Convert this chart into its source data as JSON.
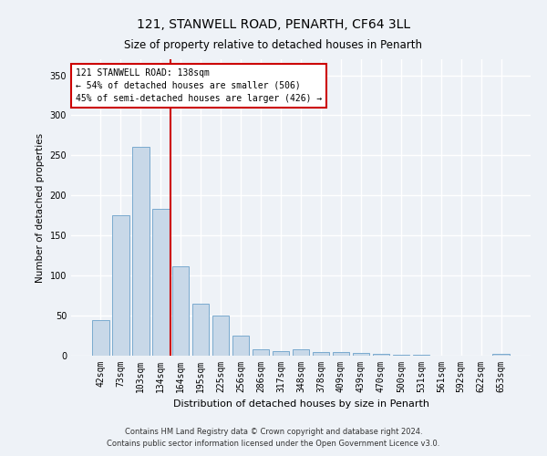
{
  "title1": "121, STANWELL ROAD, PENARTH, CF64 3LL",
  "title2": "Size of property relative to detached houses in Penarth",
  "xlabel": "Distribution of detached houses by size in Penarth",
  "ylabel": "Number of detached properties",
  "footer1": "Contains HM Land Registry data © Crown copyright and database right 2024.",
  "footer2": "Contains public sector information licensed under the Open Government Licence v3.0.",
  "annotation_line1": "121 STANWELL ROAD: 138sqm",
  "annotation_line2": "← 54% of detached houses are smaller (506)",
  "annotation_line3": "45% of semi-detached houses are larger (426) →",
  "bar_color": "#c8d8e8",
  "bar_edge_color": "#7aaacf",
  "vline_color": "#cc0000",
  "vline_x": 3.5,
  "categories": [
    "42sqm",
    "73sqm",
    "103sqm",
    "134sqm",
    "164sqm",
    "195sqm",
    "225sqm",
    "256sqm",
    "286sqm",
    "317sqm",
    "348sqm",
    "378sqm",
    "409sqm",
    "439sqm",
    "470sqm",
    "500sqm",
    "531sqm",
    "561sqm",
    "592sqm",
    "622sqm",
    "653sqm"
  ],
  "values": [
    44,
    175,
    261,
    183,
    112,
    65,
    50,
    25,
    8,
    6,
    8,
    5,
    4,
    3,
    2,
    1,
    1,
    0,
    0,
    0,
    2
  ],
  "ylim": [
    0,
    370
  ],
  "yticks": [
    0,
    50,
    100,
    150,
    200,
    250,
    300,
    350
  ],
  "background_color": "#eef2f7",
  "plot_bg_color": "#eef2f7",
  "grid_color": "#ffffff",
  "annotation_box_color": "#ffffff",
  "annotation_box_edge": "#cc0000",
  "title1_fontsize": 10,
  "title2_fontsize": 8.5,
  "xlabel_fontsize": 8,
  "ylabel_fontsize": 7.5,
  "tick_fontsize": 7,
  "footer_fontsize": 6,
  "ann_fontsize": 7
}
